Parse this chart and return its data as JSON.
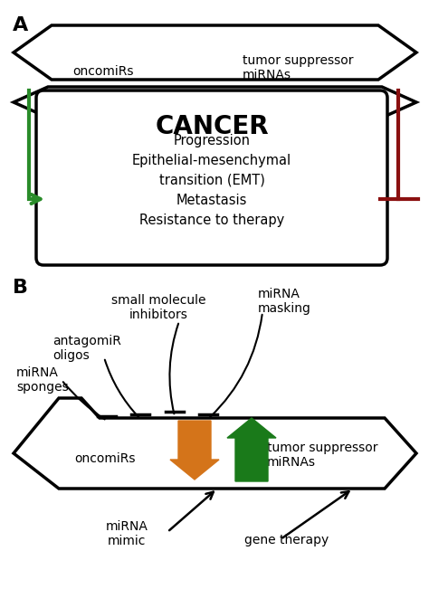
{
  "fig_width": 4.74,
  "fig_height": 6.51,
  "dpi": 100,
  "bg_color": "#ffffff",
  "green_color": "#2a8c2a",
  "dark_red_color": "#8b1010",
  "orange_color": "#d4741a",
  "dark_green_color": "#1a7a1a",
  "cancer_sub_texts": [
    "Progression",
    "Epithelial-mesenchymal",
    "transition (EMT)",
    "Metastasis",
    "Resistance to therapy"
  ]
}
